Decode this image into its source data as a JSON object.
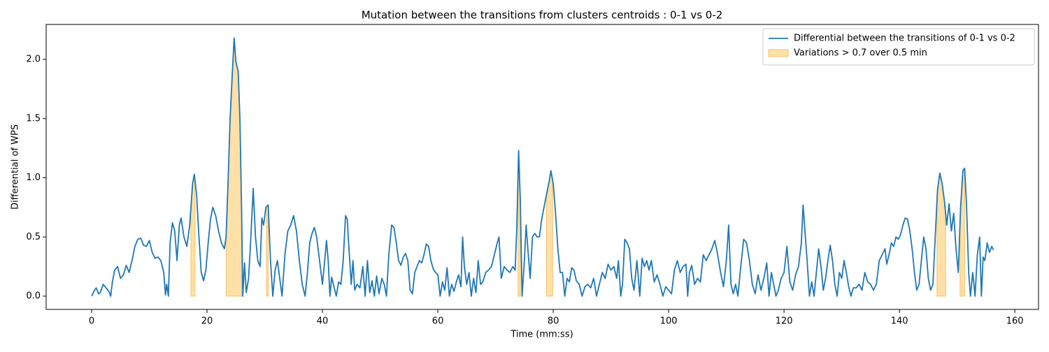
{
  "chart_data": {
    "type": "line",
    "title": "Mutation between the transitions from clusters centroids : 0-1 vs 0-2",
    "xlabel": "Time (mm:ss)",
    "ylabel": "Differential of WPS",
    "x": [
      0,
      0.5,
      0.8,
      1.2,
      1.5,
      2,
      2.5,
      3,
      3.3,
      3.6,
      4,
      4.5,
      5,
      5.5,
      6,
      6.5,
      7,
      7.5,
      8,
      8.5,
      9,
      9.5,
      10,
      10.5,
      11,
      11.5,
      12,
      12.5,
      12.8,
      13,
      13.3,
      13.6,
      14,
      14.4,
      14.8,
      15.2,
      15.5,
      16,
      16.5,
      17,
      17.5,
      17.8,
      18.2,
      18.6,
      19,
      19.4,
      19.8,
      20.2,
      20.6,
      21,
      21.5,
      22,
      22.5,
      23,
      23.3,
      23.6,
      24,
      24.4,
      24.7,
      25,
      25.4,
      25.7,
      26,
      26.2,
      26.5,
      26.8,
      27.2,
      27.6,
      28,
      28.4,
      28.8,
      29.2,
      29.5,
      29.8,
      30.2,
      30.6,
      31,
      31.4,
      31.8,
      32.2,
      32.6,
      33,
      33.5,
      34,
      34.5,
      35,
      35.5,
      36,
      36.5,
      37,
      37.4,
      37.8,
      38.2,
      38.6,
      39,
      39.5,
      40,
      40.3,
      40.7,
      41,
      41.3,
      41.6,
      42,
      42.4,
      42.8,
      43.2,
      43.6,
      44,
      44.3,
      44.6,
      45,
      45.3,
      45.6,
      46,
      46.5,
      47,
      47.4,
      47.8,
      48.2,
      48.6,
      49,
      49.4,
      49.8,
      50.3,
      50.7,
      51.1,
      51.5,
      52,
      52.4,
      52.8,
      53.2,
      53.6,
      54,
      54.4,
      54.8,
      55.2,
      55.6,
      56,
      56.4,
      56.8,
      57.2,
      57.6,
      58,
      58.4,
      58.8,
      59.2,
      59.6,
      60,
      60.4,
      60.8,
      61.2,
      61.6,
      62,
      62.4,
      62.8,
      63.2,
      63.6,
      64,
      64.3,
      64.6,
      65,
      65.4,
      65.8,
      66.2,
      66.6,
      67,
      67.4,
      67.8,
      68.3,
      68.8,
      69.3,
      69.8,
      70.3,
      70.6,
      71,
      71.5,
      72,
      72.5,
      73,
      73.4,
      73.7,
      74,
      74.3,
      74.6,
      75,
      75.3,
      75.6,
      76,
      76.4,
      76.8,
      77.2,
      77.6,
      78,
      78.4,
      78.8,
      79.3,
      79.6,
      80,
      80.4,
      80.8,
      81.2,
      81.6,
      82,
      82.4,
      82.8,
      83.2,
      83.6,
      84,
      84.5,
      85,
      85.5,
      86,
      86.5,
      87,
      87.5,
      88,
      88.5,
      89,
      89.5,
      90,
      90.5,
      91,
      91.3,
      91.7,
      92,
      92.4,
      92.8,
      93.2,
      93.6,
      94,
      94.5,
      95,
      95.4,
      95.8,
      96.2,
      96.6,
      97,
      97.5,
      98,
      98.5,
      99,
      99.5,
      100,
      100.5,
      101,
      101.5,
      102,
      102.5,
      103,
      103.3,
      103.6,
      104,
      104.5,
      105,
      105.5,
      106,
      106.5,
      107,
      107.5,
      108,
      108.5,
      109,
      109.5,
      110,
      110.4,
      110.8,
      111.2,
      111.6,
      112,
      112.5,
      113,
      113.5,
      114,
      114.5,
      115,
      115.5,
      116,
      116.5,
      117,
      117.4,
      117.8,
      118.2,
      118.6,
      119,
      119.5,
      120,
      120.5,
      121,
      121.5,
      122,
      122.5,
      123,
      123.3,
      123.7,
      124,
      124.4,
      124.8,
      125.2,
      125.6,
      126,
      126.4,
      126.8,
      127.2,
      127.6,
      128,
      128.4,
      128.8,
      129.2,
      129.6,
      130,
      130.4,
      130.8,
      131.2,
      131.6,
      132,
      132.5,
      133,
      133.5,
      134,
      134.5,
      135,
      135.5,
      136,
      136.5,
      137,
      137.5,
      137.8,
      138.2,
      138.6,
      139,
      139.4,
      139.8,
      140.2,
      140.6,
      141,
      141.4,
      141.8,
      142.2,
      142.6,
      143,
      143.4,
      143.8,
      144.2,
      144.6,
      145,
      145.4,
      145.8,
      146.2,
      146.6,
      147,
      147.4,
      147.8,
      148.2,
      148.6,
      149,
      149.4,
      149.8,
      150.2,
      150.6,
      151,
      151.3,
      151.6,
      152,
      152.3,
      152.7,
      153.1,
      153.5,
      153.9,
      154.2,
      154.5,
      154.8,
      155.2,
      155.6,
      156,
      156.3
    ],
    "series": [
      {
        "name": "Differential between the transitions of 0-1 vs 0-2",
        "color": "#1f77b4",
        "values": [
          0,
          0.05,
          0.07,
          0.02,
          0.03,
          0.1,
          0.07,
          0.04,
          0,
          0.12,
          0.22,
          0.25,
          0.15,
          0.18,
          0.26,
          0.2,
          0.3,
          0.42,
          0.48,
          0.49,
          0.43,
          0.42,
          0.47,
          0.37,
          0.32,
          0.33,
          0.3,
          0.2,
          0.01,
          0.1,
          0,
          0.45,
          0.62,
          0.55,
          0.3,
          0.6,
          0.66,
          0.5,
          0.42,
          0.6,
          0.95,
          1.03,
          0.85,
          0.5,
          0.2,
          0.13,
          0.22,
          0.45,
          0.65,
          0.75,
          0.68,
          0.55,
          0.45,
          0.4,
          0.5,
          0.9,
          1.5,
          1.9,
          2.18,
          1.98,
          1.9,
          1.5,
          0.7,
          0,
          0.28,
          0.03,
          0.15,
          0.5,
          0.91,
          0.5,
          0.3,
          0.25,
          0.66,
          0.6,
          0.75,
          0.77,
          0.3,
          0,
          0.22,
          0.3,
          0.15,
          0,
          0.35,
          0.55,
          0.6,
          0.68,
          0.55,
          0.3,
          0.1,
          0,
          0.2,
          0.45,
          0.53,
          0.58,
          0.5,
          0.3,
          0.1,
          0.25,
          0.47,
          0.3,
          0,
          0.16,
          0.08,
          0,
          0.12,
          0.1,
          0.3,
          0.68,
          0.65,
          0.4,
          0.1,
          0.3,
          0.05,
          0.1,
          0.07,
          0.25,
          0,
          0.3,
          0.03,
          0.13,
          0,
          0.17,
          0.02,
          0.15,
          0.1,
          0,
          0.35,
          0.6,
          0.58,
          0.45,
          0.3,
          0.26,
          0.33,
          0.36,
          0.3,
          0.05,
          0.02,
          0.2,
          0.25,
          0.3,
          0.28,
          0.35,
          0.44,
          0.42,
          0.3,
          0.23,
          0.2,
          0.18,
          0,
          0.12,
          0.05,
          0.24,
          0,
          0.1,
          0.04,
          0.12,
          0.18,
          0.08,
          0.5,
          0.25,
          0.1,
          0.2,
          0,
          0.15,
          0.03,
          0.3,
          0.1,
          0.12,
          0.2,
          0.22,
          0.25,
          0.35,
          0.45,
          0.5,
          0.15,
          0.25,
          0.22,
          0.2,
          0.25,
          0.22,
          0.6,
          1.23,
          0.8,
          0,
          0.3,
          0.6,
          0.4,
          0.15,
          0.5,
          0.53,
          0.5,
          0.5,
          0.65,
          0.75,
          0.85,
          0.97,
          1.06,
          0.95,
          0.7,
          0.4,
          0.2,
          0.2,
          0,
          0.15,
          0.12,
          0.24,
          0.22,
          0.13,
          0.1,
          0,
          0.08,
          0.1,
          0.07,
          0.15,
          0,
          0.1,
          0.2,
          0.15,
          0.27,
          0.22,
          0.25,
          0.15,
          0.3,
          0,
          0.1,
          0.48,
          0.45,
          0.4,
          0.15,
          0.05,
          0.3,
          0,
          0.32,
          0.25,
          0.3,
          0.22,
          0.3,
          0.12,
          0.18,
          0.1,
          0,
          0.08,
          0.05,
          0.02,
          0.22,
          0.3,
          0.2,
          0.25,
          0.27,
          0,
          0.2,
          0.26,
          0.1,
          0.15,
          0.12,
          0.35,
          0.3,
          0.35,
          0.4,
          0.47,
          0.35,
          0.2,
          0.08,
          0.3,
          0.6,
          0.1,
          0.02,
          0.1,
          0,
          0.25,
          0.48,
          0.45,
          0.3,
          0.1,
          0.02,
          0.18,
          0.05,
          0.15,
          0.28,
          0,
          0.2,
          0.1,
          0,
          0.05,
          0.15,
          0.2,
          0.42,
          0.12,
          0.05,
          0.18,
          0.25,
          0.45,
          0.77,
          0.5,
          0.3,
          0,
          0.12,
          0,
          0.2,
          0.4,
          0.25,
          0.05,
          0.15,
          0.3,
          0.43,
          0.3,
          0.1,
          0,
          0.2,
          0.15,
          0.3,
          0.2,
          0.08,
          0,
          0.07,
          0.07,
          0.1,
          0.05,
          0.2,
          0.12,
          0.1,
          0.05,
          0.1,
          0.3,
          0.35,
          0.4,
          0.27,
          0.35,
          0.45,
          0.42,
          0.5,
          0.48,
          0.52,
          0.6,
          0.66,
          0.65,
          0.55,
          0.4,
          0.2,
          0.05,
          0.1,
          0.3,
          0.5,
          0.4,
          0.15,
          0.05,
          0.1,
          0.5,
          0.9,
          1.04,
          0.95,
          0.8,
          0.6,
          0.78,
          0.55,
          0.7,
          0.4,
          0.2,
          0.75,
          1.06,
          1.08,
          0.8,
          0.2,
          0,
          0.2,
          0,
          0.35,
          0.5,
          0,
          0.33,
          0.3,
          0.45,
          0.37,
          0.42,
          0.39
        ]
      }
    ],
    "spans": {
      "name": "Variations > 0.7 over 0.5 min",
      "color": "#ffe0a6",
      "edge": "#f5c46b",
      "ranges": [
        [
          17.2,
          17.9
        ],
        [
          23.3,
          26.0
        ],
        [
          30.3,
          30.6
        ],
        [
          73.9,
          74.3
        ],
        [
          78.8,
          79.9
        ],
        [
          146.5,
          148.0
        ],
        [
          150.5,
          151.3
        ]
      ]
    },
    "xlim": [
      -7.88,
      164.1
    ],
    "ylim": [
      -0.112,
      2.295
    ],
    "xticks": [
      0,
      20,
      40,
      60,
      80,
      100,
      120,
      140,
      160
    ],
    "yticks": [
      {
        "value": 0,
        "label": "0.0"
      },
      {
        "value": 0.5,
        "label": "0.5"
      },
      {
        "value": 1,
        "label": "1.0"
      },
      {
        "value": 1.5,
        "label": "1.5"
      },
      {
        "value": 2,
        "label": "2.0"
      }
    ],
    "legend": "upper right"
  }
}
